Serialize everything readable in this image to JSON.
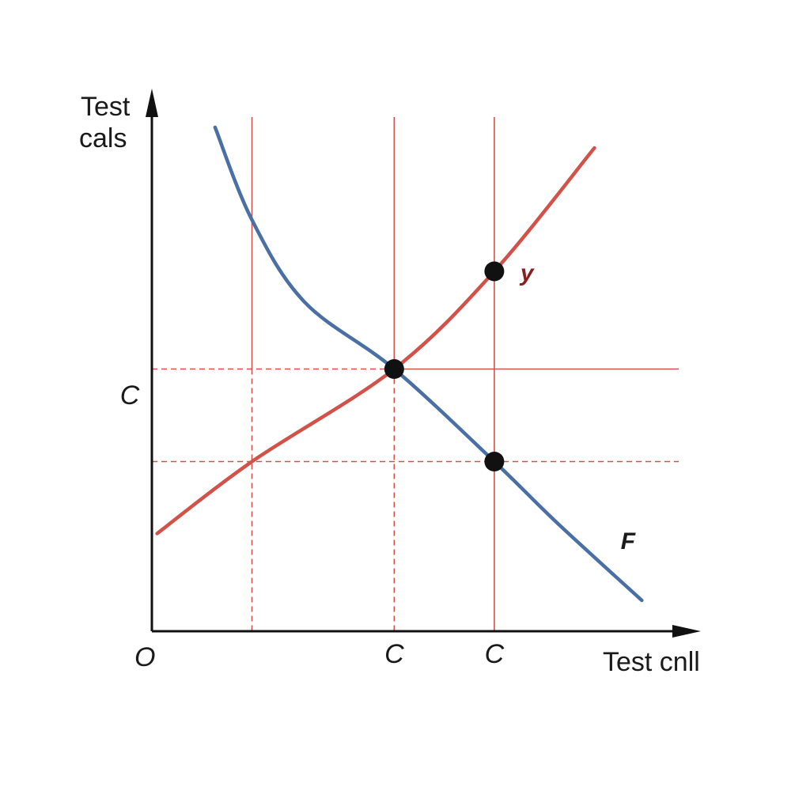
{
  "chart_data": {
    "type": "line",
    "ylabel_lines": [
      "Test",
      "cals"
    ],
    "xlabel": "Test cnll",
    "origin_label": "O",
    "x_tick_labels": [
      {
        "x": 0.46,
        "label": "C"
      },
      {
        "x": 0.65,
        "label": "C"
      }
    ],
    "y_tick_labels": [
      {
        "y": 0.46,
        "label": "C"
      }
    ],
    "xlim": [
      0,
      1
    ],
    "ylim": [
      0,
      1
    ],
    "series": [
      {
        "label": "y",
        "color": "#d2524a",
        "points": [
          [
            0.01,
            0.19
          ],
          [
            0.19,
            0.33
          ],
          [
            0.46,
            0.51
          ],
          [
            0.65,
            0.7
          ],
          [
            0.84,
            0.94
          ]
        ]
      },
      {
        "label": "F",
        "color": "#4a6fa5",
        "points": [
          [
            0.12,
            0.98
          ],
          [
            0.19,
            0.8
          ],
          [
            0.29,
            0.64
          ],
          [
            0.46,
            0.51
          ],
          [
            0.65,
            0.33
          ],
          [
            0.77,
            0.21
          ],
          [
            0.93,
            0.06
          ]
        ]
      }
    ],
    "points": [
      {
        "x": 0.46,
        "y": 0.51
      },
      {
        "x": 0.65,
        "y": 0.7
      },
      {
        "x": 0.65,
        "y": 0.33
      }
    ],
    "guides": {
      "vertical": [
        {
          "x": 0.19,
          "style": "solid-top-dashed-bottom"
        },
        {
          "x": 0.46,
          "style": "solid-top-dashed-bottom"
        },
        {
          "x": 0.65,
          "style": "solid"
        }
      ],
      "horizontal": [
        {
          "y": 0.51,
          "style": "dashed-left-solid-right"
        },
        {
          "y": 0.33,
          "style": "dashed"
        }
      ],
      "color": "#d2524a"
    },
    "axis_color": "#111111",
    "point_color": "#111111",
    "grid": false
  }
}
